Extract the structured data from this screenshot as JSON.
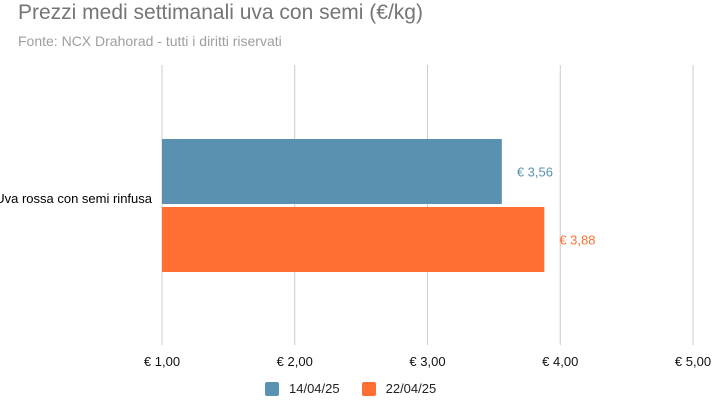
{
  "chart_data": {
    "type": "bar",
    "orientation": "horizontal",
    "title": "Prezzi medi settimanali uva con semi (€/kg)",
    "subtitle": "Fonte: NCX Drahorad - tutti i diritti riservati",
    "categories": [
      "Uva rossa con semi rinfusa"
    ],
    "series": [
      {
        "name": "14/04/25",
        "values": [
          3.56
        ],
        "labels": [
          "€ 3,56"
        ],
        "color": "#5b91b0"
      },
      {
        "name": "22/04/25",
        "values": [
          3.88
        ],
        "labels": [
          "€ 3,88"
        ],
        "color": "#ff6e33"
      }
    ],
    "xlim": [
      1,
      5
    ],
    "xticks": [
      1,
      2,
      3,
      4,
      5
    ],
    "xtick_labels": [
      "€ 1,00",
      "€ 2,00",
      "€ 3,00",
      "€ 4,00",
      "€ 5,00"
    ],
    "grid": true,
    "legend": "bottom"
  }
}
